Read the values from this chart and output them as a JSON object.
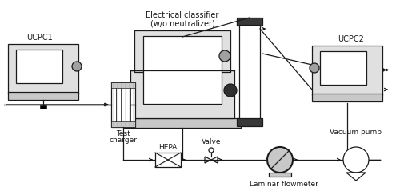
{
  "fig_width": 5.0,
  "fig_height": 2.39,
  "dpi": 100,
  "bg_color": "#ffffff",
  "line_color": "#1a1a1a",
  "gray_fill": "#c8c8c8",
  "light_gray": "#e0e0e0",
  "mid_gray": "#a0a0a0",
  "dark_fill": "#383838",
  "labels": {
    "ucpc1": "UCPC1",
    "ucpc2": "UCPC2",
    "ec_line1": "Electrical classifier",
    "ec_line2": "(w/o neutralizer)",
    "tc_line1": "Test",
    "tc_line2": "charger",
    "hepa": "HEPA",
    "valve": "Valve",
    "laminar": "Laminar flowmeter",
    "vacuum": "Vacuum pump"
  },
  "font_size": 6.5
}
